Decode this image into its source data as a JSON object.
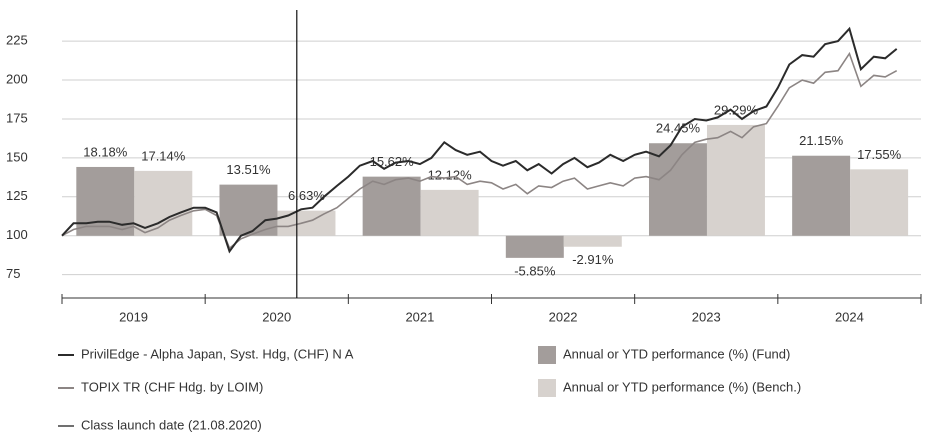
{
  "chart_data": {
    "type": "bar-line",
    "categories": [
      "2019",
      "2020",
      "2021",
      "2022",
      "2023",
      "2024"
    ],
    "xlim": [
      2019,
      2025
    ],
    "xticks": [
      2019,
      2020,
      2021,
      2022,
      2023,
      2024,
      2025
    ],
    "ylim": [
      60,
      245
    ],
    "yticks": [
      75,
      100,
      125,
      150,
      175,
      200,
      225
    ],
    "y2lim": [
      -16.46,
      59.67
    ],
    "grid": true,
    "bars": [
      {
        "name": "Annual or YTD performance (%) (Fund)",
        "color": "#a39d9b",
        "axis": "y2",
        "values": [
          18.18,
          13.51,
          15.62,
          -5.85,
          24.45,
          21.15
        ],
        "value_labels": [
          "18.18%",
          "13.51%",
          "15.62%",
          "-5.85%",
          "24.45%",
          "21.15%"
        ]
      },
      {
        "name": "Annual or YTD performance (%) (Bench.)",
        "color": "#d7d2ce",
        "axis": "y2",
        "values": [
          17.14,
          6.63,
          12.12,
          -2.91,
          29.29,
          17.55
        ],
        "value_labels": [
          "17.14%",
          "6.63%",
          "12.12%",
          "-2.91%",
          "29.29%",
          "17.55%"
        ]
      }
    ],
    "x": [
      2019,
      2019.08,
      2019.17,
      2019.25,
      2019.33,
      2019.42,
      2019.5,
      2019.58,
      2019.67,
      2019.75,
      2019.83,
      2019.92,
      2020,
      2020.08,
      2020.17,
      2020.25,
      2020.33,
      2020.42,
      2020.5,
      2020.58,
      2020.67,
      2020.75,
      2020.83,
      2020.92,
      2021,
      2021.08,
      2021.17,
      2021.25,
      2021.33,
      2021.42,
      2021.5,
      2021.58,
      2021.67,
      2021.75,
      2021.83,
      2021.92,
      2022,
      2022.08,
      2022.17,
      2022.25,
      2022.33,
      2022.42,
      2022.5,
      2022.58,
      2022.67,
      2022.75,
      2022.83,
      2022.92,
      2023,
      2023.08,
      2023.17,
      2023.25,
      2023.33,
      2023.42,
      2023.5,
      2023.58,
      2023.67,
      2023.75,
      2023.83,
      2023.92,
      2024,
      2024.08,
      2024.17,
      2024.25,
      2024.33,
      2024.42,
      2024.5,
      2024.58,
      2024.67,
      2024.75,
      2024.83
    ],
    "series": [
      {
        "name": "PrivilEdge - Alpha Japan, Syst. Hdg, (CHF) N A",
        "color": "#2b2b2b",
        "values": [
          100,
          108,
          108,
          109,
          109,
          107,
          108,
          105,
          108,
          112,
          115,
          118,
          118,
          115,
          90,
          100,
          103,
          110,
          111,
          113,
          117,
          118,
          125,
          132,
          138,
          145,
          148,
          143,
          147,
          148,
          146,
          150,
          160,
          155,
          152,
          154,
          148,
          145,
          148,
          142,
          146,
          140,
          146,
          150,
          144,
          147,
          152,
          148,
          152,
          154,
          151,
          158,
          170,
          175,
          174,
          176,
          181,
          175,
          180,
          183,
          195,
          210,
          216,
          215,
          223,
          225,
          233,
          207,
          215,
          214,
          220
        ]
      },
      {
        "name": "TOPIX TR (CHF Hdg. by LOIM)",
        "color": "#8c8584",
        "values": [
          100,
          104,
          106,
          106,
          106,
          104,
          106,
          102,
          105,
          110,
          113,
          116,
          117,
          113,
          92,
          98,
          101,
          104,
          106,
          106,
          108,
          110,
          114,
          118,
          124,
          130,
          135,
          133,
          136,
          137,
          135,
          138,
          137,
          138,
          133,
          135,
          134,
          130,
          133,
          127,
          132,
          131,
          135,
          137,
          130,
          132,
          134,
          132,
          137,
          138,
          136,
          142,
          152,
          160,
          162,
          163,
          167,
          163,
          170,
          172,
          183,
          195,
          200,
          198,
          205,
          206,
          217,
          196,
          203,
          202,
          206
        ]
      }
    ],
    "launch_line": {
      "x": 2020.64,
      "label": "Class launch date (21.08.2020)",
      "color": "#111111"
    }
  }
}
